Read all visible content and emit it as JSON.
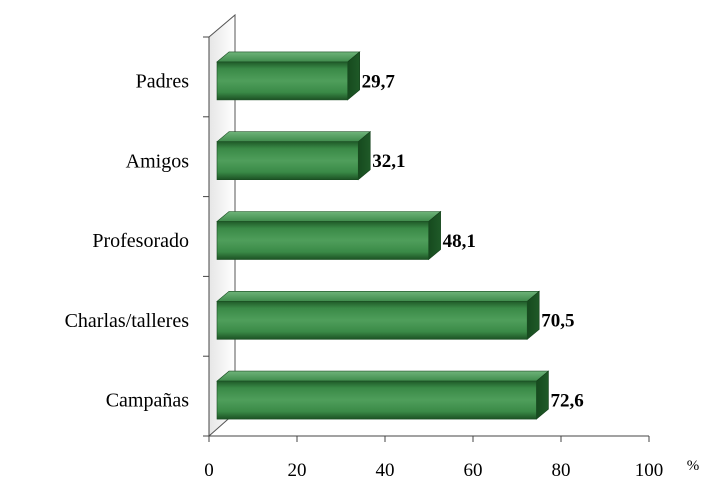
{
  "chart_data": {
    "type": "bar",
    "orientation": "horizontal",
    "style": "3d",
    "categories": [
      "Padres",
      "Amigos",
      "Profesorado",
      "Charlas/talleres",
      "Campañas"
    ],
    "values": [
      29.7,
      32.1,
      48.1,
      70.5,
      72.6
    ],
    "value_labels": [
      "29,7",
      "32,1",
      "48,1",
      "70,5",
      "72,6"
    ],
    "xlim": [
      0,
      100
    ],
    "xticks": [
      "0",
      "20",
      "40",
      "60",
      "80",
      "100"
    ],
    "unit": "%",
    "bar_color": "#2f7a3c",
    "grid": false,
    "legend": "none"
  }
}
